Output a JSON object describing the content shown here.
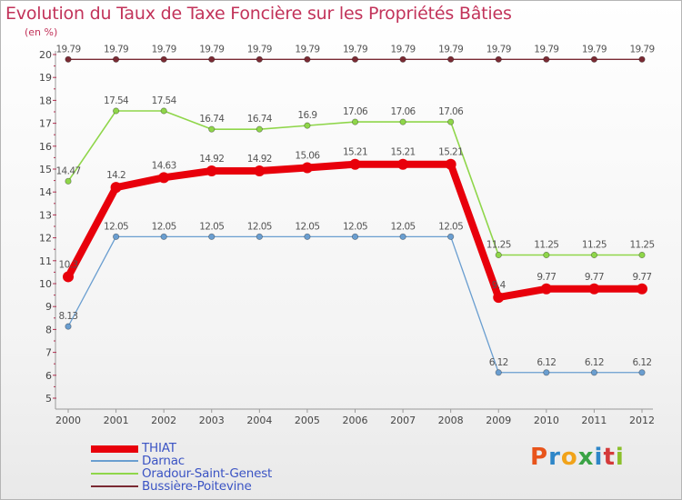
{
  "title": "Evolution du Taux de Taxe Foncière sur les Propriétés Bâties",
  "unit": "(en %)",
  "brand": {
    "letters": [
      "P",
      "r",
      "o",
      "x",
      "i",
      "t",
      "i"
    ],
    "colors": [
      "#e8541b",
      "#2e86c8",
      "#f1a31a",
      "#3aa345",
      "#2e86c8",
      "#d43a3a",
      "#8bbf2a"
    ]
  },
  "chart_data": {
    "type": "line",
    "title": "Evolution du Taux de Taxe Foncière sur les Propriétés Bâties",
    "ylabel": "(en %)",
    "xlabel": "",
    "ylim": [
      5,
      20
    ],
    "yticks": [
      5,
      6,
      7,
      8,
      9,
      10,
      11,
      12,
      13,
      14,
      15,
      16,
      17,
      18,
      19,
      20
    ],
    "x": [
      "2000",
      "2001",
      "2002",
      "2003",
      "2004",
      "2005",
      "2006",
      "2007",
      "2008",
      "2009",
      "2010",
      "2011",
      "2012"
    ],
    "series": [
      {
        "name": "Bussière-Poitevine",
        "color": "#7a2a33",
        "values": [
          19.79,
          19.79,
          19.79,
          19.79,
          19.79,
          19.79,
          19.79,
          19.79,
          19.79,
          19.79,
          19.79,
          19.79,
          19.79
        ],
        "labels": [
          "19.79",
          "19.79",
          "19.79",
          "19.79",
          "19.79",
          "19.79",
          "19.79",
          "19.79",
          "19.79",
          "19.79",
          "19.79",
          "19.79",
          "19.79"
        ]
      },
      {
        "name": "Oradour-Saint-Genest",
        "color": "#8fd64a",
        "values": [
          14.47,
          17.54,
          17.54,
          16.74,
          16.74,
          16.9,
          17.06,
          17.06,
          17.06,
          11.25,
          11.25,
          11.25,
          11.25
        ],
        "labels": [
          "14.47",
          "17.54",
          "17.54",
          "16.74",
          "16.74",
          "16.9",
          "17.06",
          "17.06",
          "17.06",
          "11.25",
          "11.25",
          "11.25",
          "11.25"
        ]
      },
      {
        "name": "Darnac",
        "color": "#6a9ed0",
        "values": [
          8.13,
          12.05,
          12.05,
          12.05,
          12.05,
          12.05,
          12.05,
          12.05,
          12.05,
          6.12,
          6.12,
          6.12,
          6.12
        ],
        "labels": [
          "8.13",
          "12.05",
          "12.05",
          "12.05",
          "12.05",
          "12.05",
          "12.05",
          "12.05",
          "12.05",
          "6.12",
          "6.12",
          "6.12",
          "6.12"
        ]
      },
      {
        "name": "THIAT",
        "color": "#e8000b",
        "values": [
          10.3,
          14.2,
          14.63,
          14.92,
          14.92,
          15.06,
          15.21,
          15.21,
          15.21,
          9.4,
          9.77,
          9.77,
          9.77
        ],
        "labels": [
          "10.3",
          "14.2",
          "14.63",
          "14.92",
          "14.92",
          "15.06",
          "15.21",
          "15.21",
          "15.21",
          "9.4",
          "9.77",
          "9.77",
          "9.77"
        ]
      }
    ],
    "legend": [
      "THIAT",
      "Darnac",
      "Oradour-Saint-Genest",
      "Bussière-Poitevine"
    ],
    "grid": false,
    "legend_position": "bottom-left"
  }
}
